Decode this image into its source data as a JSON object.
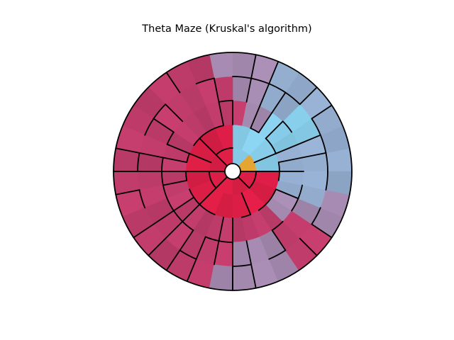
{
  "title": "Theta Maze (Kruskal's algorithm)",
  "maze": {
    "algorithm": "Kruskal",
    "rings": 6,
    "cells_per_ring": [
      1,
      8,
      16,
      32,
      32,
      32
    ],
    "colors": {
      "hub_fill": "#ffffff",
      "center_cell": "#e5a532",
      "red": "#dc1e46",
      "pink": "#c03c6a",
      "mauve": "#a58ab0",
      "light_blue": "#87cdea",
      "gray_blue": "#94aed0",
      "wall": "#000000"
    },
    "ring_colors": {
      "ring1": [
        "light_blue",
        "light_blue",
        "red",
        "red",
        "red",
        "red",
        "red",
        "red"
      ],
      "ring2": [
        "light_blue",
        "light_blue",
        "light_blue",
        "light_blue",
        "red",
        "red",
        "red",
        "red",
        "red",
        "red",
        "red",
        "red",
        "red",
        "red",
        "red",
        "red"
      ],
      "ring3": [
        "gray_blue",
        "gray_blue",
        "light_blue",
        "light_blue",
        "light_blue",
        "mauve",
        "mauve",
        "pink",
        "pink",
        "pink",
        "pink",
        "pink",
        "pink",
        "pink",
        "pink",
        "pink",
        "pink",
        "pink",
        "pink",
        "pink",
        "pink",
        "pink",
        "pink",
        "pink",
        "pink",
        "pink",
        "pink",
        "pink",
        "mauve",
        "mauve",
        "gray_blue",
        "gray_blue"
      ],
      "ring4": [
        "gray_blue",
        "gray_blue",
        "light_blue",
        "light_blue",
        "gray_blue",
        "gray_blue",
        "mauve",
        "mauve",
        "pink",
        "pink",
        "pink",
        "pink",
        "pink",
        "pink",
        "pink",
        "pink",
        "pink",
        "pink",
        "pink",
        "pink",
        "pink",
        "pink",
        "pink",
        "pink",
        "mauve",
        "mauve",
        "mauve",
        "pink",
        "pink",
        "mauve",
        "gray_blue",
        "gray_blue"
      ],
      "ring5": [
        "gray_blue",
        "gray_blue",
        "gray_blue",
        "gray_blue",
        "gray_blue",
        "gray_blue",
        "mauve",
        "mauve",
        "mauve",
        "pink",
        "pink",
        "pink",
        "pink",
        "pink",
        "pink",
        "pink",
        "pink",
        "pink",
        "pink",
        "pink",
        "pink",
        "pink",
        "pink",
        "mauve",
        "mauve",
        "mauve",
        "mauve",
        "pink",
        "pink",
        "mauve",
        "mauve",
        "gray_blue"
      ]
    }
  }
}
